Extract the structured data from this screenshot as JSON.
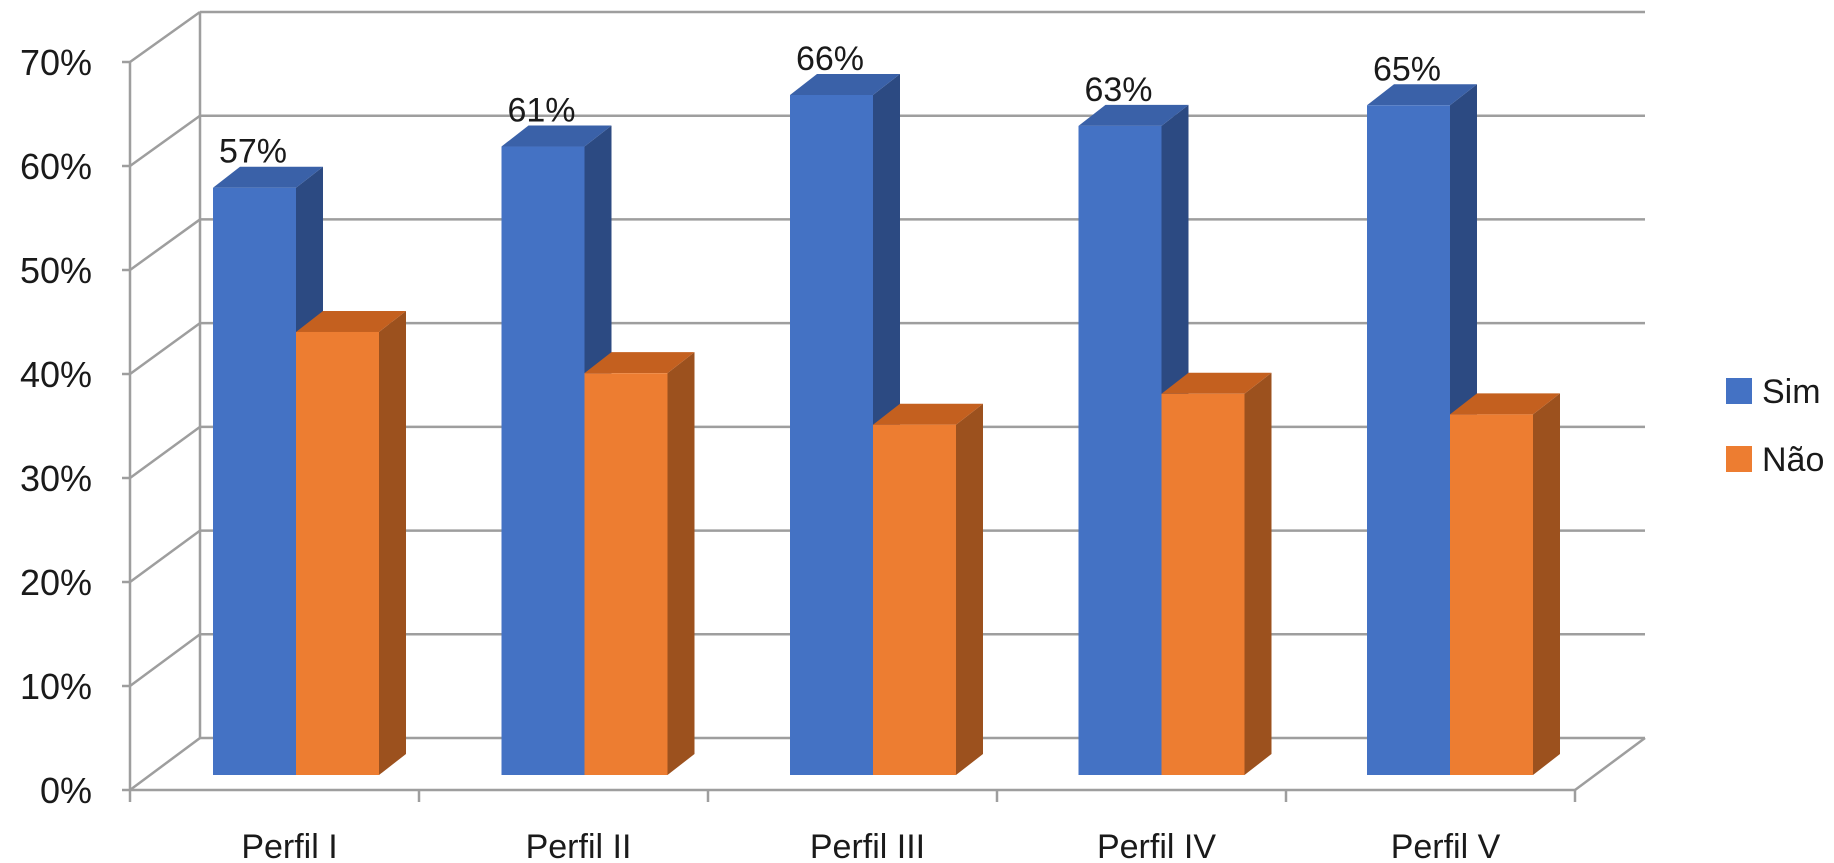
{
  "chart_data": {
    "type": "bar",
    "categories": [
      "Perfil I",
      "Perfil II",
      "Perfil III",
      "Perfil IV",
      "Perfil V"
    ],
    "series": [
      {
        "name": "Sim",
        "values": [
          57,
          61,
          66,
          63,
          65
        ],
        "color": "#4472C4",
        "color_side": "#2C4A82",
        "color_top": "#3A61A8"
      },
      {
        "name": "Não",
        "values": [
          43,
          39,
          34,
          37,
          35
        ],
        "color": "#ED7D31",
        "color_side": "#9C511E",
        "color_top": "#C4601F"
      }
    ],
    "data_labels": [
      "57%",
      "61%",
      "66%",
      "63%",
      "65%"
    ],
    "y_ticks": [
      "0%",
      "10%",
      "20%",
      "30%",
      "40%",
      "50%",
      "60%",
      "70%"
    ],
    "ylim": [
      0,
      70
    ],
    "grid": true,
    "legend_position": "right",
    "style": "3d-column"
  }
}
